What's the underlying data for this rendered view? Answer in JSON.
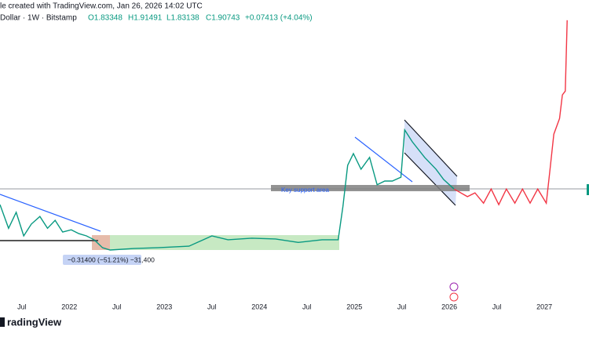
{
  "chart_data": {
    "type": "line",
    "title": "le created with TradingView.com, Jan 26, 2026 14:02 UTC",
    "subtitle": "Dollar · 1W · Bitstamp",
    "ohlc": [
      "O1.83348",
      "H1.91491",
      "L1.83138",
      "C1.90743"
    ],
    "change": "+0.07413 (+4.04%)",
    "annotations": [
      "Key support area",
      "−0.31400 (−51.21%) −31,400"
    ],
    "watermark": "radingView",
    "xlim": [
      2021.27,
      2027.47
    ],
    "xticks": [
      {
        "value": 2021.5,
        "label": "Jul"
      },
      2022,
      {
        "value": 2022.5,
        "label": "Jul"
      },
      2023,
      {
        "value": 2023.5,
        "label": "Jul"
      },
      2024,
      {
        "value": 2024.5,
        "label": "Jul"
      },
      2025,
      {
        "value": 2025.5,
        "label": "Jul"
      },
      2026,
      {
        "value": 2026.5,
        "label": "Jul"
      },
      2027
    ],
    "ylim": [
      -0.8,
      6.85
    ],
    "series": [
      {
        "color": "#089981",
        "x": [
          2021.27,
          2021.36,
          2021.44,
          2021.52,
          2021.6,
          2021.69,
          2021.77,
          2021.85,
          2021.93,
          2022.02,
          2022.1,
          2022.18,
          2022.26,
          2022.35,
          2022.43,
          2022.68,
          2022.93,
          2023.26,
          2023.5,
          2023.67,
          2023.92,
          2024.17,
          2024.41,
          2024.66,
          2024.83,
          2024.88,
          2024.93,
          2024.99,
          2025.07,
          2025.16,
          2025.24,
          2025.32,
          2025.4,
          2025.49,
          2025.53,
          2025.61,
          2025.74,
          2025.86,
          2025.94,
          2026.05
        ],
        "values": [
          1.48,
          0.86,
          1.28,
          0.66,
          0.97,
          1.17,
          0.86,
          1.07,
          0.76,
          0.82,
          0.72,
          0.66,
          0.56,
          0.35,
          0.29,
          0.33,
          0.35,
          0.39,
          0.66,
          0.56,
          0.6,
          0.58,
          0.49,
          0.56,
          0.56,
          1.44,
          2.51,
          2.82,
          2.41,
          2.72,
          2.0,
          2.1,
          2.1,
          2.2,
          3.44,
          3.13,
          2.72,
          2.41,
          2.14,
          1.89
        ]
      },
      {
        "color": "#f23645",
        "x": [
          2026.05,
          2026.19,
          2026.27,
          2026.36,
          2026.44,
          2026.52,
          2026.6,
          2026.69,
          2026.77,
          2026.85,
          2026.93,
          2027.02,
          2027.06,
          2027.1,
          2027.16,
          2027.19,
          2027.22,
          2027.24
        ],
        "values": [
          1.89,
          1.69,
          1.79,
          1.52,
          1.89,
          1.48,
          1.89,
          1.52,
          1.89,
          1.52,
          1.89,
          1.52,
          2.41,
          3.33,
          3.74,
          4.36,
          4.46,
          6.32
        ]
      }
    ]
  }
}
